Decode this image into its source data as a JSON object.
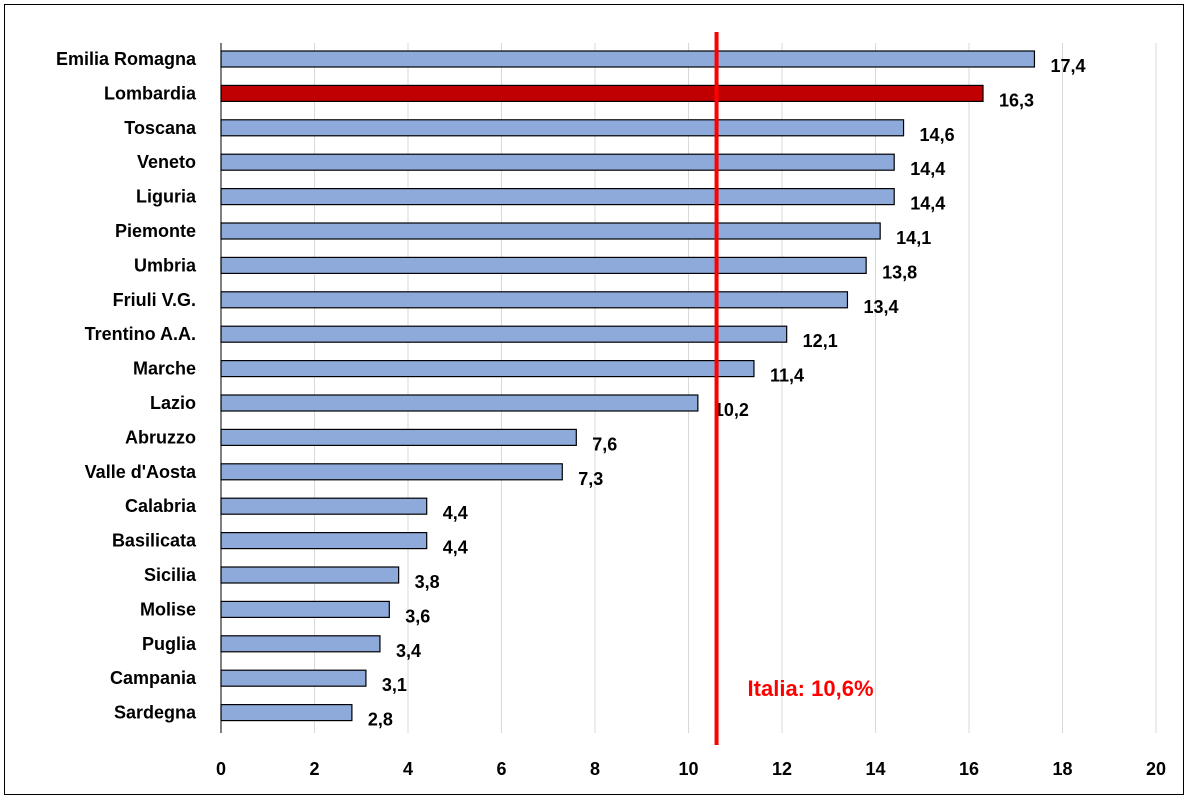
{
  "chart_data": {
    "type": "bar",
    "orientation": "horizontal",
    "title": "",
    "xlabel": "",
    "ylabel": "",
    "xlim": [
      0,
      20
    ],
    "x_ticks": [
      0,
      2,
      4,
      6,
      8,
      10,
      12,
      14,
      16,
      18,
      20
    ],
    "grid": true,
    "categories": [
      "Emilia Romagna",
      "Lombardia",
      "Toscana",
      "Veneto",
      "Liguria",
      "Piemonte",
      "Umbria",
      "Friuli V.G.",
      "Trentino A.A.",
      "Marche",
      "Lazio",
      "Abruzzo",
      "Valle d'Aosta",
      "Calabria",
      "Basilicata",
      "Sicilia",
      "Molise",
      "Puglia",
      "Campania",
      "Sardegna"
    ],
    "values": [
      17.4,
      16.3,
      14.6,
      14.4,
      14.4,
      14.1,
      13.8,
      13.4,
      12.1,
      11.4,
      10.2,
      7.6,
      7.3,
      4.4,
      4.4,
      3.8,
      3.6,
      3.4,
      3.1,
      2.8
    ],
    "value_labels": [
      "17,4",
      "16,3",
      "14,6",
      "14,4",
      "14,4",
      "14,1",
      "13,8",
      "13,4",
      "12,1",
      "11,4",
      "10,2",
      "7,6",
      "7,3",
      "4,4",
      "4,4",
      "3,8",
      "3,6",
      "3,4",
      "3,1",
      "2,8"
    ],
    "highlight_category": "Lombardia",
    "reference_line": {
      "value": 10.6,
      "label": "Italia: 10,6%"
    },
    "colors": {
      "bar": "#8eaadb",
      "highlight": "#c00000",
      "reference": "#ff0000",
      "grid": "#d9d9d9",
      "bar_stroke": "#000000"
    }
  }
}
